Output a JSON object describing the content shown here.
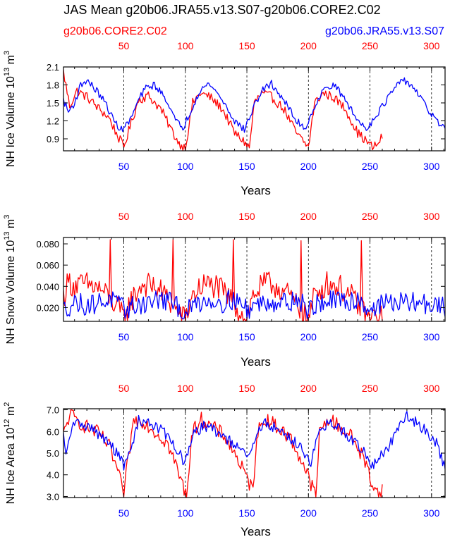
{
  "title": "JAS Mean g20b06.JRA55.v13.S07-g20b06.CORE2.C02",
  "legend": {
    "red_label": "g20b06.CORE2.C02",
    "blue_label": "g20b06.JRA55.v13.S07"
  },
  "colors": {
    "red": "#ff0000",
    "blue": "#0000ff",
    "axis": "#000000"
  },
  "chart_data": [
    {
      "type": "line",
      "ylabel_main": "NH Ice Volume 10",
      "ylabel_exp": "13",
      "ylabel_unit": " m",
      "ylabel_unit_exp": "3",
      "xlabel": "Years",
      "xlim": [
        1,
        311
      ],
      "ylim": [
        0.7,
        2.1
      ],
      "yticks": [
        0.9,
        1.2,
        1.5,
        1.8,
        2.1
      ],
      "ytick_labels": [
        "0.9",
        "1.2",
        "1.5",
        "1.8",
        "2.1"
      ],
      "xticks_blue": [
        "50",
        "100",
        "150",
        "200",
        "250",
        "300"
      ],
      "xticks_red": [
        "50",
        "100",
        "150",
        "200",
        "250",
        "300"
      ],
      "ref_lines_x": [
        50,
        100,
        150,
        200,
        250,
        300
      ],
      "series": [
        {
          "name": "g20b06.CORE2.C02",
          "color": "red",
          "x_start": 1,
          "x_end": 260,
          "keypoints": [
            [
              1,
              2.02
            ],
            [
              6,
              1.45
            ],
            [
              12,
              1.7
            ],
            [
              20,
              1.6
            ],
            [
              30,
              1.4
            ],
            [
              38,
              1.25
            ],
            [
              45,
              0.95
            ],
            [
              50,
              0.76
            ],
            [
              55,
              1.1
            ],
            [
              62,
              1.55
            ],
            [
              70,
              1.62
            ],
            [
              80,
              1.4
            ],
            [
              90,
              1.0
            ],
            [
              95,
              0.82
            ],
            [
              100,
              0.75
            ],
            [
              106,
              1.5
            ],
            [
              112,
              1.66
            ],
            [
              120,
              1.6
            ],
            [
              130,
              1.4
            ],
            [
              140,
              1.0
            ],
            [
              148,
              0.85
            ],
            [
              152,
              0.75
            ],
            [
              156,
              1.5
            ],
            [
              162,
              1.66
            ],
            [
              170,
              1.6
            ],
            [
              180,
              1.4
            ],
            [
              190,
              1.0
            ],
            [
              196,
              0.85
            ],
            [
              200,
              0.76
            ],
            [
              205,
              1.5
            ],
            [
              212,
              1.66
            ],
            [
              220,
              1.6
            ],
            [
              230,
              1.4
            ],
            [
              240,
              1.0
            ],
            [
              246,
              0.88
            ],
            [
              252,
              0.76
            ],
            [
              256,
              0.8
            ],
            [
              260,
              0.95
            ]
          ],
          "noise": 0.08
        },
        {
          "name": "g20b06.JRA55.v13.S07",
          "color": "blue",
          "x_start": 1,
          "x_end": 311,
          "keypoints": [
            [
              1,
              1.55
            ],
            [
              5,
              1.35
            ],
            [
              10,
              1.5
            ],
            [
              15,
              1.8
            ],
            [
              20,
              1.88
            ],
            [
              28,
              1.7
            ],
            [
              35,
              1.5
            ],
            [
              42,
              1.2
            ],
            [
              48,
              1.05
            ],
            [
              55,
              1.2
            ],
            [
              62,
              1.55
            ],
            [
              68,
              1.75
            ],
            [
              75,
              1.8
            ],
            [
              85,
              1.55
            ],
            [
              92,
              1.2
            ],
            [
              98,
              1.08
            ],
            [
              104,
              1.35
            ],
            [
              112,
              1.72
            ],
            [
              120,
              1.82
            ],
            [
              130,
              1.55
            ],
            [
              140,
              1.2
            ],
            [
              148,
              1.05
            ],
            [
              155,
              1.4
            ],
            [
              162,
              1.7
            ],
            [
              170,
              1.82
            ],
            [
              180,
              1.55
            ],
            [
              190,
              1.2
            ],
            [
              198,
              1.08
            ],
            [
              205,
              1.45
            ],
            [
              212,
              1.7
            ],
            [
              220,
              1.82
            ],
            [
              230,
              1.55
            ],
            [
              240,
              1.2
            ],
            [
              248,
              1.08
            ],
            [
              255,
              1.3
            ],
            [
              262,
              1.5
            ],
            [
              270,
              1.75
            ],
            [
              278,
              1.88
            ],
            [
              286,
              1.75
            ],
            [
              295,
              1.45
            ],
            [
              302,
              1.25
            ],
            [
              311,
              1.05
            ]
          ],
          "noise": 0.06
        }
      ]
    },
    {
      "type": "line",
      "ylabel_main": "NH Snow Volume 10",
      "ylabel_exp": "13",
      "ylabel_unit": " m",
      "ylabel_unit_exp": "3",
      "xlabel": "Years",
      "xlim": [
        1,
        311
      ],
      "ylim": [
        0.007,
        0.086
      ],
      "yticks": [
        0.02,
        0.04,
        0.06,
        0.08
      ],
      "ytick_labels": [
        "0.020",
        "0.040",
        "0.060",
        "0.080"
      ],
      "xticks_blue": [
        "50",
        "100",
        "150",
        "200",
        "250",
        "300"
      ],
      "xticks_red": [
        "50",
        "100",
        "150",
        "200",
        "250",
        "300"
      ],
      "ref_lines_x": [
        50,
        100,
        150,
        200,
        250,
        300
      ],
      "series": [
        {
          "name": "g20b06.CORE2.C02",
          "color": "red",
          "x_start": 1,
          "x_end": 260,
          "keypoints": [
            [
              1,
              0.03
            ],
            [
              5,
              0.045
            ],
            [
              10,
              0.04
            ],
            [
              20,
              0.042
            ],
            [
              30,
              0.038
            ],
            [
              38,
              0.03
            ],
            [
              45,
              0.02
            ],
            [
              50,
              0.01
            ],
            [
              55,
              0.025
            ],
            [
              65,
              0.042
            ],
            [
              75,
              0.04
            ],
            [
              85,
              0.03
            ],
            [
              92,
              0.018
            ],
            [
              100,
              0.008
            ],
            [
              105,
              0.03
            ],
            [
              115,
              0.042
            ],
            [
              125,
              0.04
            ],
            [
              135,
              0.03
            ],
            [
              145,
              0.015
            ],
            [
              150,
              0.008
            ],
            [
              155,
              0.032
            ],
            [
              165,
              0.043
            ],
            [
              175,
              0.04
            ],
            [
              185,
              0.03
            ],
            [
              195,
              0.015
            ],
            [
              200,
              0.008
            ],
            [
              205,
              0.032
            ],
            [
              215,
              0.043
            ],
            [
              225,
              0.04
            ],
            [
              235,
              0.03
            ],
            [
              245,
              0.015
            ],
            [
              250,
              0.009
            ],
            [
              255,
              0.012
            ],
            [
              260,
              0.01
            ]
          ],
          "noise": 0.012,
          "spikes": [
            [
              39,
              0.084
            ],
            [
              90,
              0.084
            ],
            [
              139,
              0.084
            ],
            [
              194,
              0.083
            ],
            [
              243,
              0.083
            ]
          ]
        },
        {
          "name": "g20b06.JRA55.v13.S07",
          "color": "blue",
          "x_start": 1,
          "x_end": 311,
          "keypoints": [
            [
              1,
              0.018
            ],
            [
              10,
              0.025
            ],
            [
              20,
              0.022
            ],
            [
              30,
              0.025
            ],
            [
              40,
              0.028
            ],
            [
              50,
              0.018
            ],
            [
              60,
              0.022
            ],
            [
              70,
              0.025
            ],
            [
              80,
              0.028
            ],
            [
              90,
              0.024
            ],
            [
              100,
              0.015
            ],
            [
              110,
              0.025
            ],
            [
              120,
              0.027
            ],
            [
              130,
              0.025
            ],
            [
              140,
              0.028
            ],
            [
              150,
              0.018
            ],
            [
              160,
              0.024
            ],
            [
              170,
              0.026
            ],
            [
              180,
              0.025
            ],
            [
              190,
              0.028
            ],
            [
              200,
              0.018
            ],
            [
              210,
              0.025
            ],
            [
              220,
              0.026
            ],
            [
              230,
              0.025
            ],
            [
              240,
              0.028
            ],
            [
              250,
              0.018
            ],
            [
              260,
              0.024
            ],
            [
              270,
              0.025
            ],
            [
              280,
              0.024
            ],
            [
              290,
              0.025
            ],
            [
              300,
              0.022
            ],
            [
              311,
              0.02
            ]
          ],
          "noise": 0.01
        }
      ]
    },
    {
      "type": "line",
      "ylabel_main": "NH Ice Area 10",
      "ylabel_exp": "12",
      "ylabel_unit": " m",
      "ylabel_unit_exp": "2",
      "xlabel": "Years",
      "xlim": [
        1,
        311
      ],
      "ylim": [
        2.95,
        7.05
      ],
      "yticks": [
        3.0,
        4.0,
        5.0,
        6.0,
        7.0
      ],
      "ytick_labels": [
        "3.0",
        "4.0",
        "5.0",
        "6.0",
        "7.0"
      ],
      "xticks_blue": [
        "50",
        "100",
        "150",
        "200",
        "250",
        "300"
      ],
      "xticks_red": [
        "50",
        "100",
        "150",
        "200",
        "250",
        "300"
      ],
      "ref_lines_x": [
        50,
        100,
        150,
        200,
        250,
        300
      ],
      "series": [
        {
          "name": "g20b06.CORE2.C02",
          "color": "red",
          "x_start": 1,
          "x_end": 260,
          "keypoints": [
            [
              1,
              5.8
            ],
            [
              6,
              6.8
            ],
            [
              12,
              6.5
            ],
            [
              20,
              6.2
            ],
            [
              30,
              5.9
            ],
            [
              38,
              5.3
            ],
            [
              45,
              4.2
            ],
            [
              50,
              3.0
            ],
            [
              53,
              4.5
            ],
            [
              58,
              6.5
            ],
            [
              66,
              6.5
            ],
            [
              75,
              6.0
            ],
            [
              85,
              5.5
            ],
            [
              92,
              4.5
            ],
            [
              98,
              3.5
            ],
            [
              101,
              3.0
            ],
            [
              105,
              5.8
            ],
            [
              112,
              6.6
            ],
            [
              122,
              6.2
            ],
            [
              132,
              5.8
            ],
            [
              142,
              4.8
            ],
            [
              150,
              3.8
            ],
            [
              155,
              3.3
            ],
            [
              158,
              5.9
            ],
            [
              165,
              6.6
            ],
            [
              175,
              6.2
            ],
            [
              185,
              5.7
            ],
            [
              195,
              4.6
            ],
            [
              202,
              3.6
            ],
            [
              206,
              3.0
            ],
            [
              209,
              5.9
            ],
            [
              216,
              6.6
            ],
            [
              226,
              6.2
            ],
            [
              236,
              5.7
            ],
            [
              246,
              4.6
            ],
            [
              252,
              3.6
            ],
            [
              258,
              3.0
            ],
            [
              260,
              3.3
            ]
          ],
          "noise": 0.35
        },
        {
          "name": "g20b06.JRA55.v13.S07",
          "color": "blue",
          "x_start": 1,
          "x_end": 311,
          "keypoints": [
            [
              1,
              5.8
            ],
            [
              3,
              4.8
            ],
            [
              8,
              6.3
            ],
            [
              15,
              6.4
            ],
            [
              25,
              6.1
            ],
            [
              35,
              5.6
            ],
            [
              45,
              5.0
            ],
            [
              50,
              4.4
            ],
            [
              55,
              5.0
            ],
            [
              62,
              6.5
            ],
            [
              72,
              6.4
            ],
            [
              82,
              6.0
            ],
            [
              92,
              5.3
            ],
            [
              100,
              4.5
            ],
            [
              106,
              5.8
            ],
            [
              115,
              6.3
            ],
            [
              125,
              6.0
            ],
            [
              135,
              5.6
            ],
            [
              145,
              5.1
            ],
            [
              152,
              4.8
            ],
            [
              158,
              5.9
            ],
            [
              165,
              6.4
            ],
            [
              175,
              6.1
            ],
            [
              185,
              5.7
            ],
            [
              195,
              5.2
            ],
            [
              202,
              4.6
            ],
            [
              208,
              5.8
            ],
            [
              216,
              6.4
            ],
            [
              226,
              6.1
            ],
            [
              236,
              5.6
            ],
            [
              246,
              5.0
            ],
            [
              252,
              4.4
            ],
            [
              258,
              4.8
            ],
            [
              265,
              5.3
            ],
            [
              272,
              6.0
            ],
            [
              280,
              6.7
            ],
            [
              288,
              6.4
            ],
            [
              296,
              6.0
            ],
            [
              304,
              5.5
            ],
            [
              311,
              4.3
            ]
          ],
          "noise": 0.25
        }
      ]
    }
  ]
}
